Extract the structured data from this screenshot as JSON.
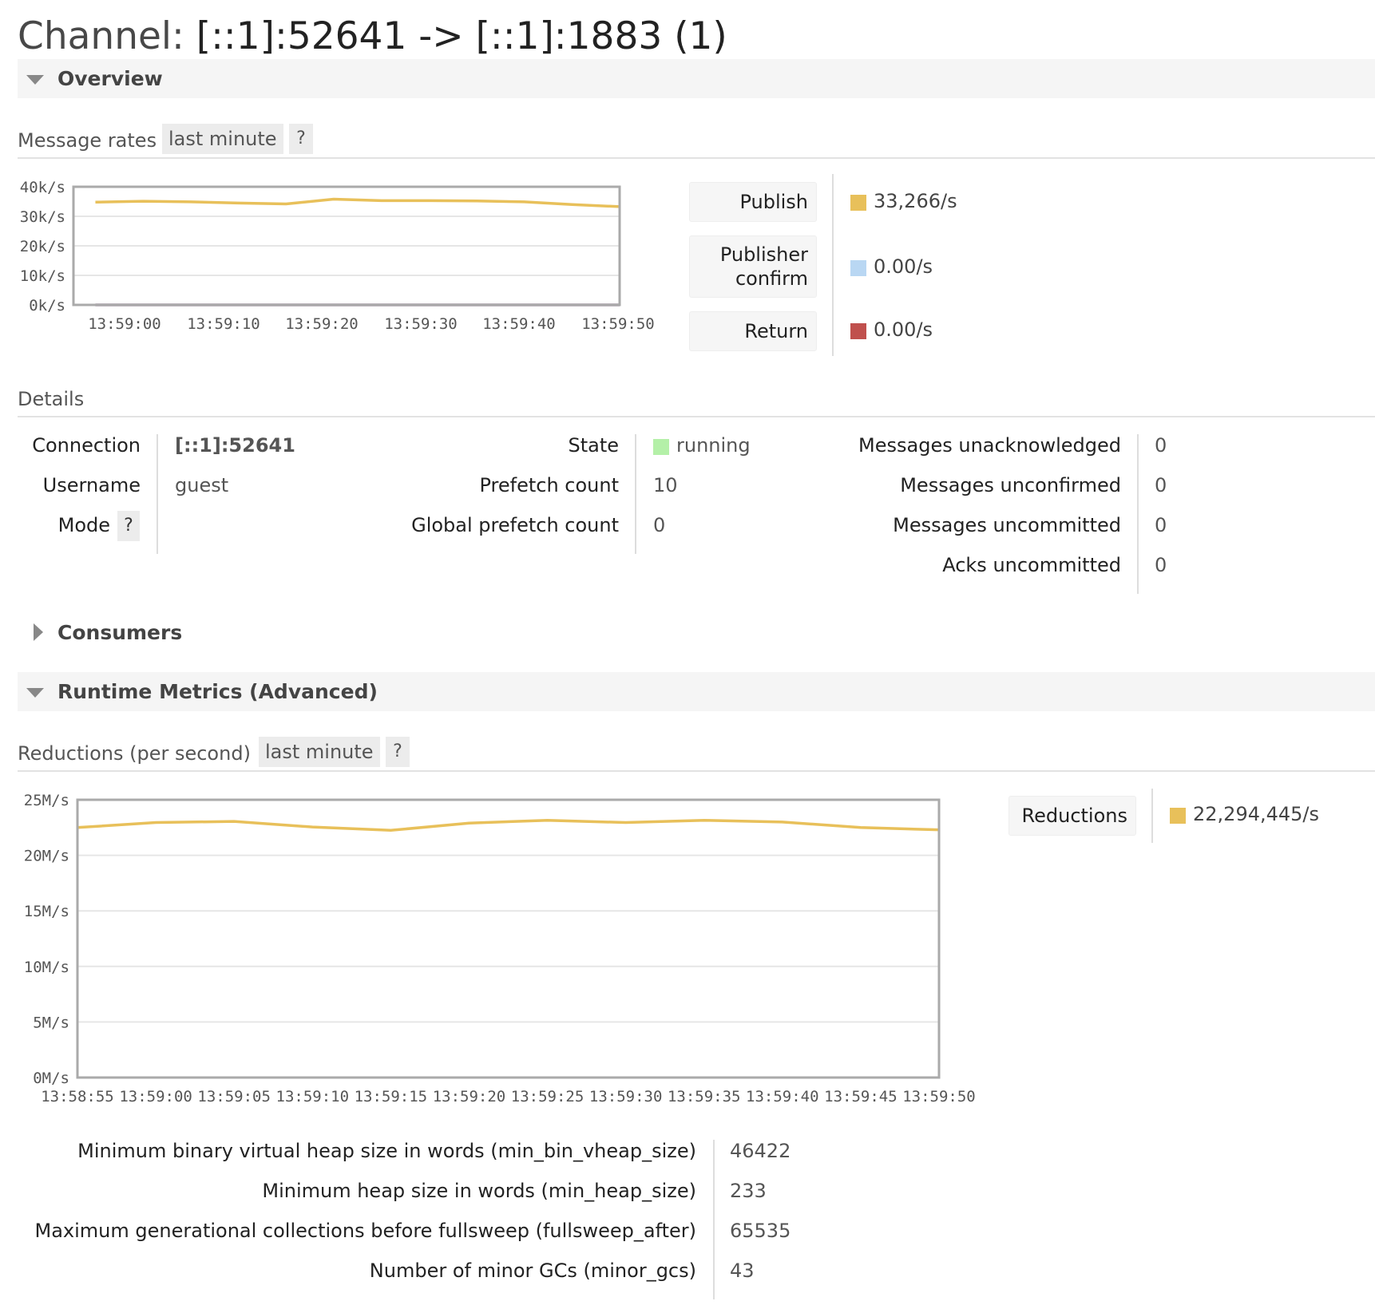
{
  "page": {
    "title_prefix": "Channel:",
    "title_name": "[::1]:52641 -> [::1]:1883 (1)"
  },
  "overview": {
    "section_label": "Overview",
    "message_rates": {
      "label": "Message rates",
      "range_label": "last minute",
      "help_label": "?"
    },
    "legend": [
      {
        "label": "Publish",
        "value": "33,266/s",
        "color": "#e8c05a"
      },
      {
        "label_line1": "Publisher",
        "label_line2": "confirm",
        "value": "0.00/s",
        "color": "#b9d7f3"
      },
      {
        "label": "Return",
        "value": "0.00/s",
        "color": "#c0504d"
      }
    ]
  },
  "details": {
    "label": "Details",
    "col1": [
      {
        "label": "Connection",
        "value": "[::1]:52641"
      },
      {
        "label": "Username",
        "value": "guest"
      },
      {
        "label": "Mode",
        "help": "?",
        "value": ""
      }
    ],
    "col2": [
      {
        "label": "State",
        "value": "running",
        "color": "#b4f0a8"
      },
      {
        "label": "Prefetch count",
        "value": "10"
      },
      {
        "label": "Global prefetch count",
        "value": "0"
      }
    ],
    "col3": [
      {
        "label": "Messages unacknowledged",
        "value": "0"
      },
      {
        "label": "Messages unconfirmed",
        "value": "0"
      },
      {
        "label": "Messages uncommitted",
        "value": "0"
      },
      {
        "label": "Acks uncommitted",
        "value": "0"
      }
    ]
  },
  "consumers": {
    "section_label": "Consumers"
  },
  "runtime": {
    "section_label": "Runtime Metrics (Advanced)",
    "reductions": {
      "label": "Reductions (per second)",
      "range_label": "last minute",
      "help_label": "?"
    },
    "legend": {
      "label": "Reductions",
      "value": "22,294,445/s",
      "color": "#e8c05a"
    },
    "metrics": [
      {
        "label": "Minimum binary virtual heap size in words (min_bin_vheap_size)",
        "value": "46422"
      },
      {
        "label": "Minimum heap size in words (min_heap_size)",
        "value": "233"
      },
      {
        "label": "Maximum generational collections before fullsweep (fullsweep_after)",
        "value": "65535"
      },
      {
        "label": "Number of minor GCs (minor_gcs)",
        "value": "43"
      }
    ]
  },
  "chart_data": [
    {
      "type": "line",
      "title": "",
      "y_ticks": [
        "0k/s",
        "10k/s",
        "20k/s",
        "30k/s",
        "40k/s"
      ],
      "ylim": [
        0,
        40000
      ],
      "x_ticks": [
        "13:59:00",
        "13:59:10",
        "13:59:20",
        "13:59:30",
        "13:59:40",
        "13:59:50"
      ],
      "x": [
        0,
        5,
        10,
        15,
        20,
        25,
        30,
        35,
        40,
        45,
        50,
        55
      ],
      "series": [
        {
          "name": "Publish",
          "color": "#e8c05a",
          "values": [
            34800,
            35100,
            34900,
            34500,
            34200,
            35800,
            35300,
            35300,
            35200,
            34900,
            34000,
            33266
          ]
        },
        {
          "name": "Publisher confirm",
          "color": "#b9d7f3",
          "values": [
            0,
            0,
            0,
            0,
            0,
            0,
            0,
            0,
            0,
            0,
            0,
            0
          ]
        },
        {
          "name": "Return",
          "color": "#c0504d",
          "values": [
            0,
            0,
            0,
            0,
            0,
            0,
            0,
            0,
            0,
            0,
            0,
            0
          ]
        }
      ]
    },
    {
      "type": "line",
      "title": "",
      "y_ticks": [
        "0M/s",
        "5M/s",
        "10M/s",
        "15M/s",
        "20M/s",
        "25M/s"
      ],
      "ylim": [
        0,
        25000000
      ],
      "x_ticks": [
        "13:58:55",
        "13:59:00",
        "13:59:05",
        "13:59:10",
        "13:59:15",
        "13:59:20",
        "13:59:25",
        "13:59:30",
        "13:59:35",
        "13:59:40",
        "13:59:45",
        "13:59:50"
      ],
      "x": [
        0,
        5,
        10,
        15,
        20,
        25,
        30,
        35,
        40,
        45,
        50,
        55
      ],
      "series": [
        {
          "name": "Reductions",
          "color": "#e8c05a",
          "values": [
            22500000,
            22950000,
            23050000,
            22550000,
            22250000,
            22900000,
            23150000,
            22950000,
            23150000,
            23000000,
            22500000,
            22294445
          ]
        }
      ]
    }
  ]
}
